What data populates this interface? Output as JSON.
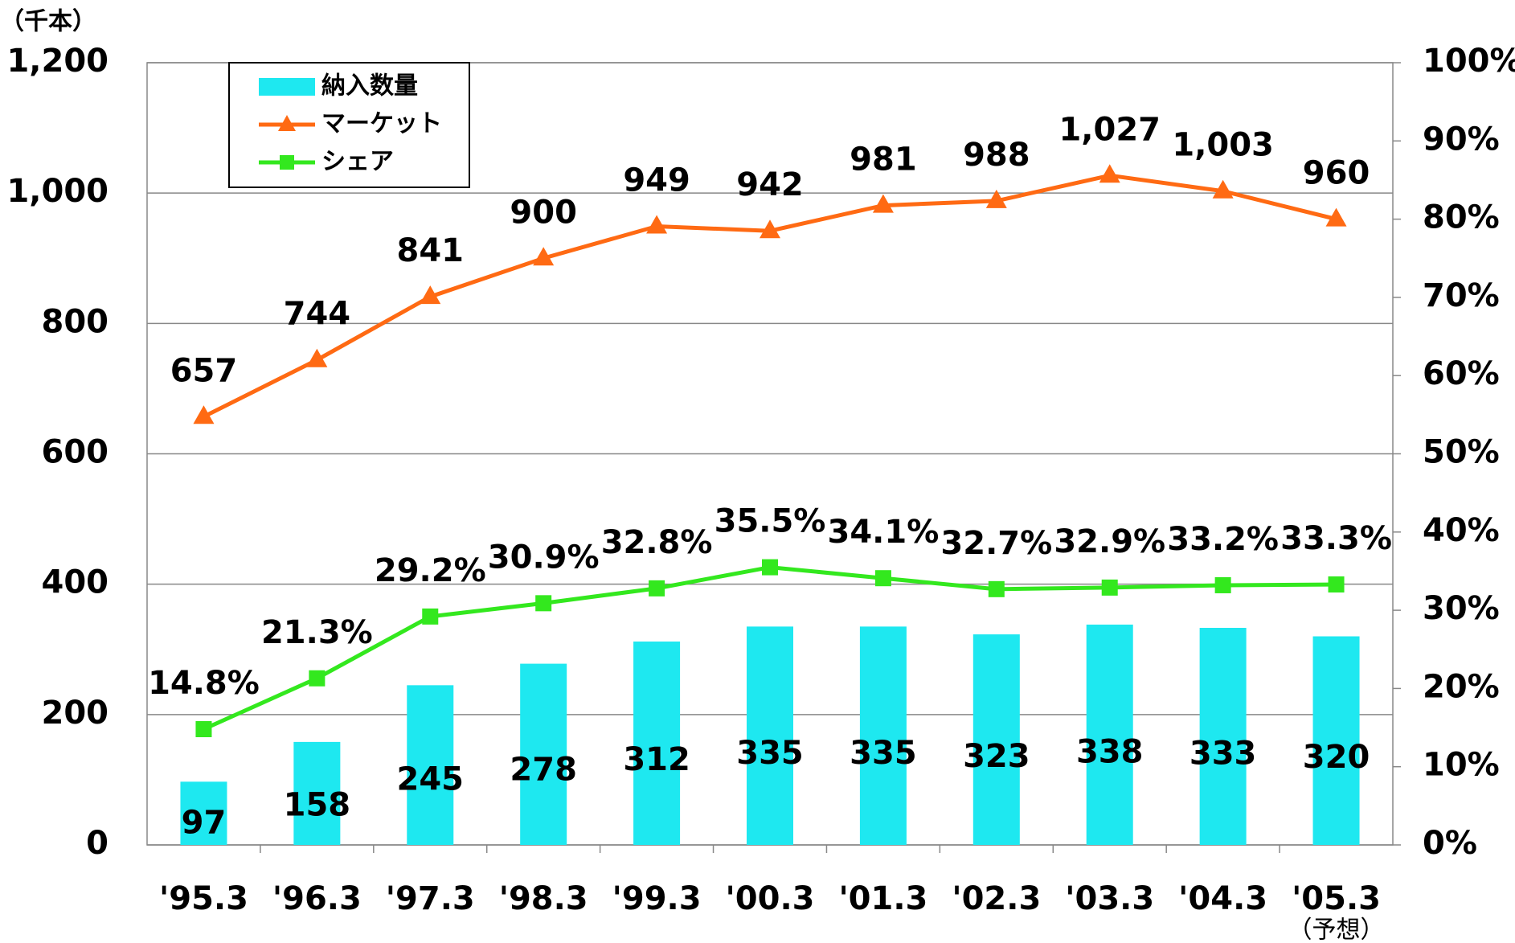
{
  "chart_data": {
    "type": "bar",
    "unit_label": "（千本）",
    "note": "（予想）",
    "categories": [
      "'95.3",
      "'96.3",
      "'97.3",
      "'98.3",
      "'99.3",
      "'00.3",
      "'01.3",
      "'02.3",
      "'03.3",
      "'04.3",
      "'05.3"
    ],
    "series": [
      {
        "name": "納入数量",
        "type": "bar",
        "color": "#1ee8f0",
        "values": [
          97,
          158,
          245,
          278,
          312,
          335,
          335,
          323,
          338,
          333,
          320
        ]
      },
      {
        "name": "マーケット",
        "type": "line",
        "marker": "triangle",
        "color": "#ff6a13",
        "values": [
          657,
          744,
          841,
          900,
          949,
          942,
          981,
          988,
          1027,
          1003,
          960
        ],
        "value_labels": [
          "657",
          "744",
          "841",
          "900",
          "949",
          "942",
          "981",
          "988",
          "1,027",
          "1,003",
          "960"
        ]
      },
      {
        "name": "シェア",
        "type": "line",
        "marker": "square",
        "axis": "y2",
        "color": "#33e81e",
        "values": [
          14.8,
          21.3,
          29.2,
          30.9,
          32.8,
          35.5,
          34.1,
          32.7,
          32.9,
          33.2,
          33.3
        ],
        "value_labels": [
          "14.8%",
          "21.3%",
          "29.2%",
          "30.9%",
          "32.8%",
          "35.5%",
          "34.1%",
          "32.7%",
          "32.9%",
          "33.2%",
          "33.3%"
        ]
      }
    ],
    "ylim": [
      0,
      1200
    ],
    "yticks": [
      0,
      200,
      400,
      600,
      800,
      {
        "value": 1000,
        "label": "1,000"
      },
      {
        "value": 1200,
        "label": "1,200"
      }
    ],
    "y2lim": [
      0,
      100
    ],
    "y2ticks": [
      {
        "value": 0,
        "label": "0%"
      },
      {
        "value": 10,
        "label": "10%"
      },
      {
        "value": 20,
        "label": "20%"
      },
      {
        "value": 30,
        "label": "30%"
      },
      {
        "value": 40,
        "label": "40%"
      },
      {
        "value": 50,
        "label": "50%"
      },
      {
        "value": 60,
        "label": "60%"
      },
      {
        "value": 70,
        "label": "70%"
      },
      {
        "value": 80,
        "label": "80%"
      },
      {
        "value": 90,
        "label": "90%"
      },
      {
        "value": 100,
        "label": "100%"
      }
    ],
    "grid": true,
    "legend": "upper left"
  }
}
